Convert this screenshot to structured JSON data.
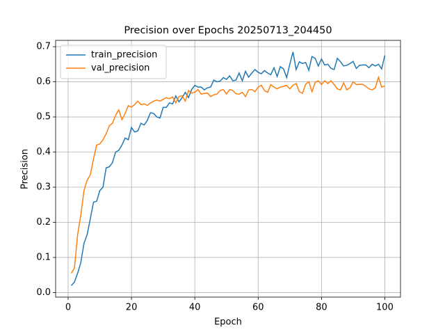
{
  "chart_data": {
    "type": "line",
    "title": "Precision over Epochs 20250713_204450",
    "x_label": "Epoch",
    "y_label": "Precision",
    "x": [
      1,
      2,
      3,
      4,
      5,
      6,
      7,
      8,
      9,
      10,
      11,
      12,
      13,
      14,
      15,
      16,
      17,
      18,
      19,
      20,
      21,
      22,
      23,
      24,
      25,
      26,
      27,
      28,
      29,
      30,
      31,
      32,
      33,
      34,
      35,
      36,
      37,
      38,
      39,
      40,
      41,
      42,
      43,
      44,
      45,
      46,
      47,
      48,
      49,
      50,
      51,
      52,
      53,
      54,
      55,
      56,
      57,
      58,
      59,
      60,
      61,
      62,
      63,
      64,
      65,
      66,
      67,
      68,
      69,
      70,
      71,
      72,
      73,
      74,
      75,
      76,
      77,
      78,
      79,
      80,
      81,
      82,
      83,
      84,
      85,
      86,
      87,
      88,
      89,
      90,
      91,
      92,
      93,
      94,
      95,
      96,
      97,
      98,
      99,
      100
    ],
    "series": [
      {
        "name": "train_precision",
        "color": "#1f77b4",
        "values": [
          0.02,
          0.03,
          0.055,
          0.085,
          0.14,
          0.165,
          0.21,
          0.257,
          0.26,
          0.29,
          0.3,
          0.355,
          0.358,
          0.37,
          0.4,
          0.405,
          0.42,
          0.44,
          0.435,
          0.47,
          0.457,
          0.46,
          0.482,
          0.477,
          0.49,
          0.512,
          0.51,
          0.5,
          0.497,
          0.527,
          0.527,
          0.54,
          0.537,
          0.56,
          0.543,
          0.555,
          0.57,
          0.555,
          0.578,
          0.59,
          0.585,
          0.585,
          0.577,
          0.583,
          0.585,
          0.605,
          0.6,
          0.602,
          0.612,
          0.607,
          0.617,
          0.603,
          0.605,
          0.625,
          0.603,
          0.63,
          0.613,
          0.625,
          0.635,
          0.627,
          0.623,
          0.632,
          0.625,
          0.62,
          0.64,
          0.615,
          0.643,
          0.637,
          0.612,
          0.65,
          0.685,
          0.635,
          0.657,
          0.652,
          0.655,
          0.633,
          0.672,
          0.667,
          0.645,
          0.665,
          0.648,
          0.65,
          0.638,
          0.635,
          0.667,
          0.657,
          0.645,
          0.647,
          0.652,
          0.658,
          0.638,
          0.647,
          0.648,
          0.648,
          0.64,
          0.65,
          0.645,
          0.65,
          0.637,
          0.675
        ]
      },
      {
        "name": "val_precision",
        "color": "#ff7f0e",
        "values": [
          0.055,
          0.07,
          0.165,
          0.22,
          0.29,
          0.32,
          0.335,
          0.38,
          0.42,
          0.423,
          0.435,
          0.452,
          0.475,
          0.482,
          0.505,
          0.52,
          0.492,
          0.51,
          0.532,
          0.528,
          0.535,
          0.545,
          0.535,
          0.537,
          0.533,
          0.54,
          0.545,
          0.548,
          0.545,
          0.55,
          0.555,
          0.552,
          0.557,
          0.54,
          0.558,
          0.56,
          0.545,
          0.575,
          0.568,
          0.57,
          0.578,
          0.565,
          0.567,
          0.568,
          0.558,
          0.563,
          0.565,
          0.575,
          0.578,
          0.565,
          0.578,
          0.575,
          0.566,
          0.565,
          0.57,
          0.558,
          0.577,
          0.578,
          0.572,
          0.585,
          0.59,
          0.575,
          0.57,
          0.592,
          0.585,
          0.58,
          0.585,
          0.587,
          0.59,
          0.58,
          0.59,
          0.595,
          0.572,
          0.567,
          0.593,
          0.6,
          0.572,
          0.598,
          0.603,
          0.592,
          0.603,
          0.595,
          0.603,
          0.592,
          0.58,
          0.577,
          0.597,
          0.577,
          0.583,
          0.6,
          0.592,
          0.593,
          0.593,
          0.587,
          0.58,
          0.577,
          0.583,
          0.613,
          0.585,
          0.588
        ]
      }
    ],
    "xlim": [
      -3.95,
      104.95
    ],
    "xticks": [
      0,
      20,
      40,
      60,
      80,
      100
    ],
    "ylim": [
      -0.013,
      0.718
    ],
    "yticks": [
      {
        "value": 0,
        "label": "0.0"
      },
      0.1,
      0.2,
      0.3,
      0.4,
      0.5,
      0.6,
      0.7
    ],
    "grid": true,
    "legend": "upper left"
  }
}
